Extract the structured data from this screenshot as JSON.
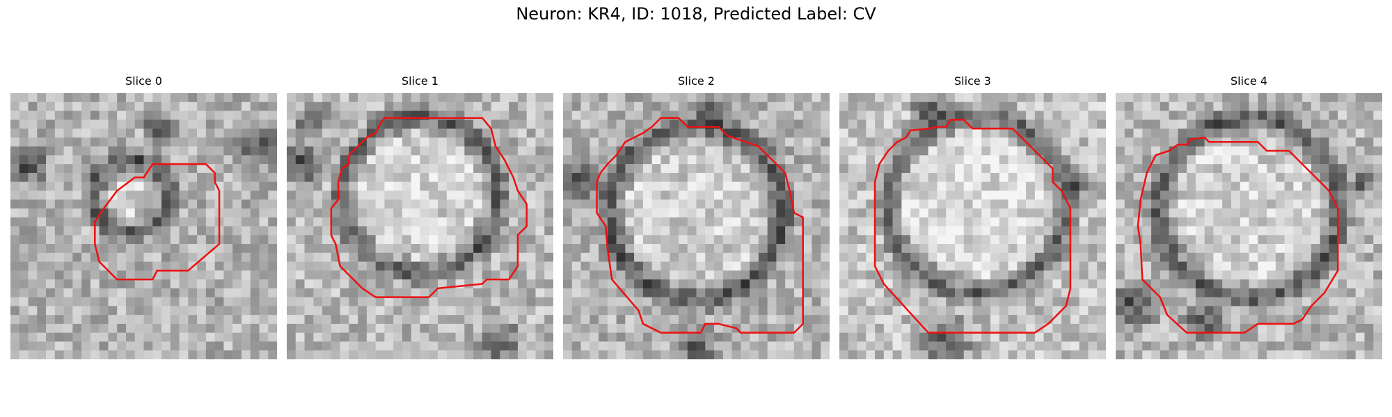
{
  "figure": {
    "title": "Neuron: KR4, ID: 1018, Predicted Label: CV"
  },
  "colors": {
    "contour": "#ee1111",
    "background": "#ffffff"
  },
  "slices": [
    {
      "title": "Slice 0"
    },
    {
      "title": "Slice 1"
    },
    {
      "title": "Slice 2"
    },
    {
      "title": "Slice 3"
    },
    {
      "title": "Slice 4"
    }
  ]
}
